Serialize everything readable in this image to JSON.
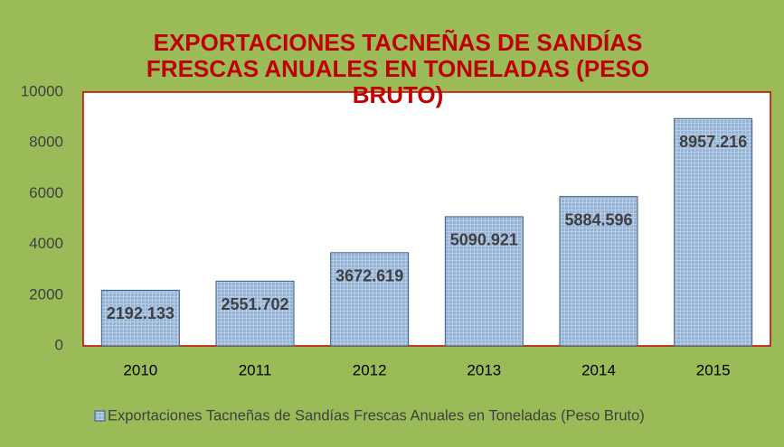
{
  "chart_data": {
    "type": "bar",
    "title": "EXPORTACIONES TACNEÑAS DE SANDÍAS FRESCAS ANUALES EN TONELADAS (PESO BRUTO)",
    "categories": [
      "2010",
      "2011",
      "2012",
      "2013",
      "2014",
      "2015"
    ],
    "series": [
      {
        "name": "Exportaciones Tacneñas de Sandías Frescas Anuales en Toneladas (Peso Bruto)",
        "color": "#95b3d7",
        "values": [
          2192.133,
          2551.702,
          3672.619,
          5090.921,
          5884.596,
          8957.216
        ]
      }
    ],
    "ylim": [
      0,
      10000
    ],
    "yticks": [
      0,
      2000,
      4000,
      6000,
      8000,
      10000
    ],
    "grid": false,
    "legend": "bottom"
  }
}
